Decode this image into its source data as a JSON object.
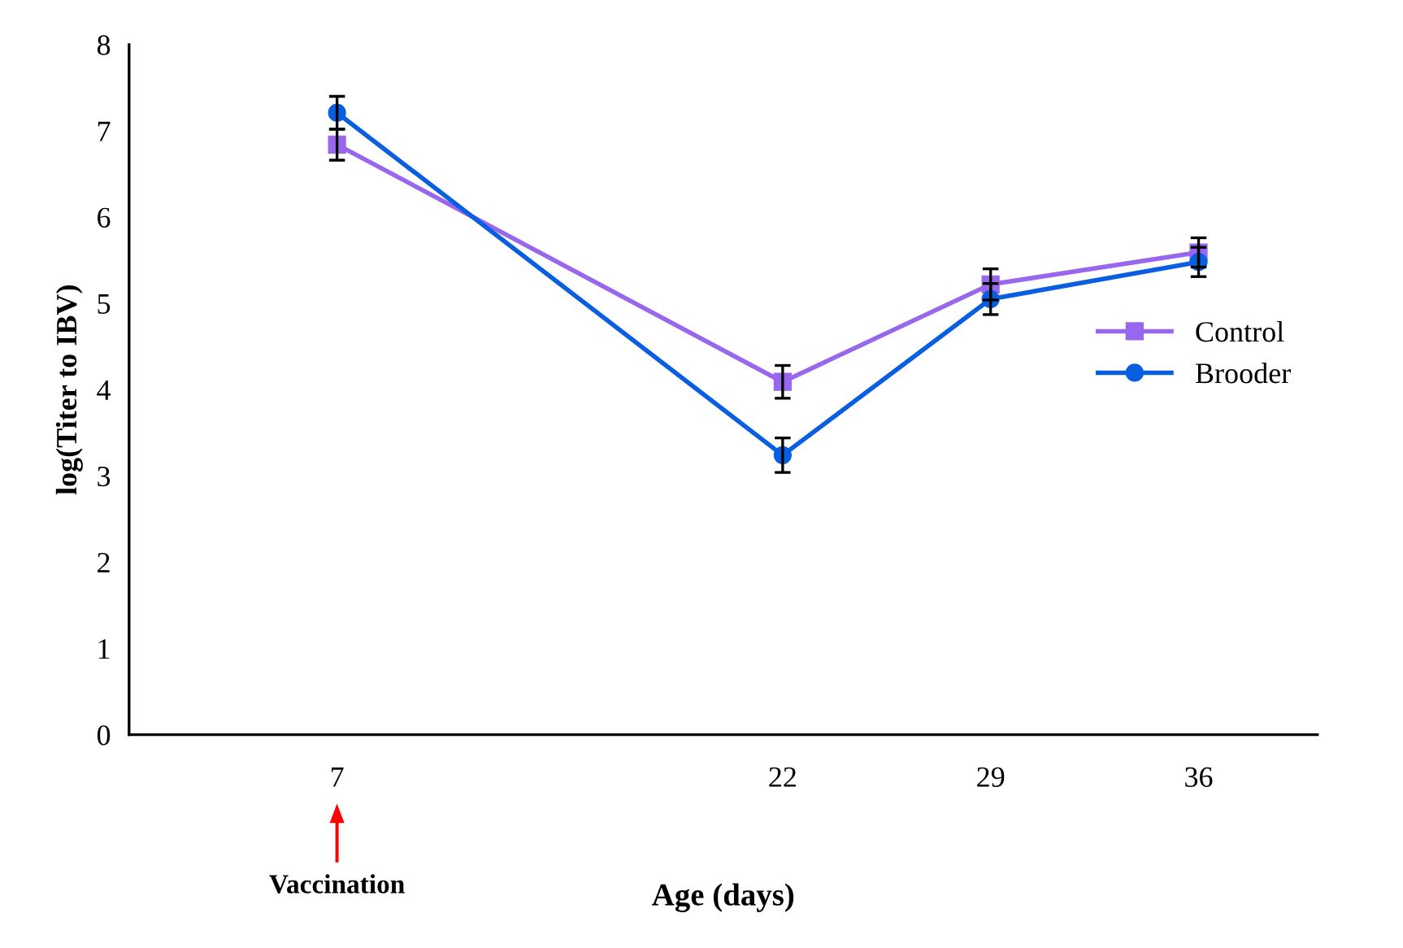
{
  "chart_data": {
    "type": "line",
    "xlabel": "Age (days)",
    "ylabel": "log(Titer to IBV)",
    "x": [
      7,
      22,
      29,
      36
    ],
    "series": [
      {
        "name": "Control",
        "color": "#9966ee",
        "marker": "square",
        "values": [
          6.84,
          4.09,
          5.22,
          5.59
        ],
        "errors": [
          0.18,
          0.19,
          0.18,
          0.17
        ]
      },
      {
        "name": "Brooder",
        "color": "#0a5ee0",
        "marker": "circle",
        "values": [
          7.21,
          3.24,
          5.05,
          5.48
        ],
        "errors": [
          0.19,
          0.2,
          0.18,
          0.17
        ]
      }
    ],
    "xlim": [
      0,
      40
    ],
    "xticks": [
      7,
      22,
      29,
      36
    ],
    "ylim": [
      0,
      8
    ],
    "yticks": [
      0,
      1,
      2,
      3,
      4,
      5,
      6,
      7,
      8
    ],
    "annotations": [
      "Vaccination"
    ],
    "grid": false,
    "legend": "right",
    "line_style": "solid"
  }
}
